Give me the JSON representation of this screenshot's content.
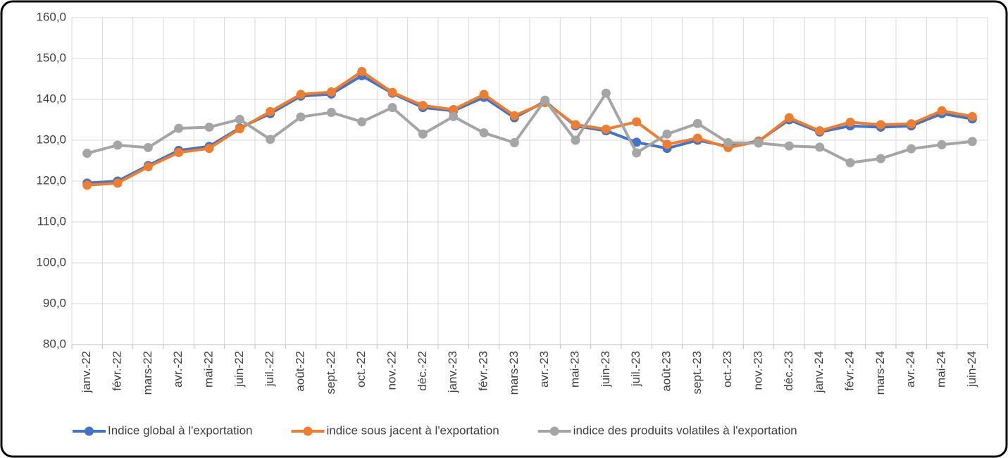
{
  "chart_data": {
    "type": "line",
    "categories": [
      "janv.-22",
      "févr.-22",
      "mars-22",
      "avr.-22",
      "mai-22",
      "juin-22",
      "juil.-22",
      "août-22",
      "sept.-22",
      "oct.-22",
      "nov.-22",
      "déc.-22",
      "janv.-23",
      "févr.-23",
      "mars-23",
      "avr.-23",
      "mai-23",
      "juin-23",
      "juil.-23",
      "août-23",
      "sept.-23",
      "oct.-23",
      "nov.-23",
      "déc.-23",
      "janv.-24",
      "févr.-24",
      "mars-24",
      "avr.-24",
      "mai-24",
      "juin-24"
    ],
    "series": [
      {
        "name": "Indice global à l'exportation",
        "color": "#4472c4",
        "values": [
          119.5,
          120,
          123.8,
          127.5,
          128.5,
          133,
          136.5,
          140.8,
          141.3,
          145.8,
          141.5,
          138,
          137.2,
          140.5,
          135.5,
          139.5,
          133.5,
          132.3,
          129.5,
          128,
          130,
          128.5,
          129.8,
          135,
          132,
          133.5,
          133.2,
          133.5,
          136.5,
          135.2
        ]
      },
      {
        "name": "indice sous jacent à l'exportation",
        "color": "#ed7d31",
        "values": [
          119,
          119.5,
          123.5,
          127,
          128,
          132.8,
          137,
          141.2,
          141.8,
          146.8,
          141.7,
          138.5,
          137.5,
          141.2,
          136,
          139.2,
          133.8,
          132.7,
          134.5,
          129,
          130.5,
          128.2,
          129.7,
          135.5,
          132.3,
          134.4,
          133.8,
          134,
          137.2,
          135.8
        ]
      },
      {
        "name": "indice des produits volatiles à l'exportation",
        "color": "#a5a5a5",
        "values": [
          126.8,
          128.8,
          128.2,
          132.9,
          133.2,
          135.1,
          130.2,
          135.7,
          136.8,
          134.5,
          138,
          131.5,
          135.8,
          131.8,
          129.4,
          139.8,
          130,
          141.5,
          126.9,
          131.5,
          134.1,
          129.4,
          129.3,
          128.6,
          128.3,
          124.5,
          125.5,
          127.9,
          128.9,
          129.7
        ]
      }
    ],
    "ylim": [
      80,
      160
    ],
    "yticks": [
      {
        "value": 80,
        "label": "80,0"
      },
      {
        "value": 90,
        "label": "90,0"
      },
      {
        "value": 100,
        "label": "100,0"
      },
      {
        "value": 110,
        "label": "110,0"
      },
      {
        "value": 120,
        "label": "120,0"
      },
      {
        "value": 130,
        "label": "130,0"
      },
      {
        "value": 140,
        "label": "140,0"
      },
      {
        "value": 150,
        "label": "150,0"
      },
      {
        "value": 160,
        "label": "160,0"
      }
    ],
    "grid": true,
    "legend": "bottom"
  }
}
